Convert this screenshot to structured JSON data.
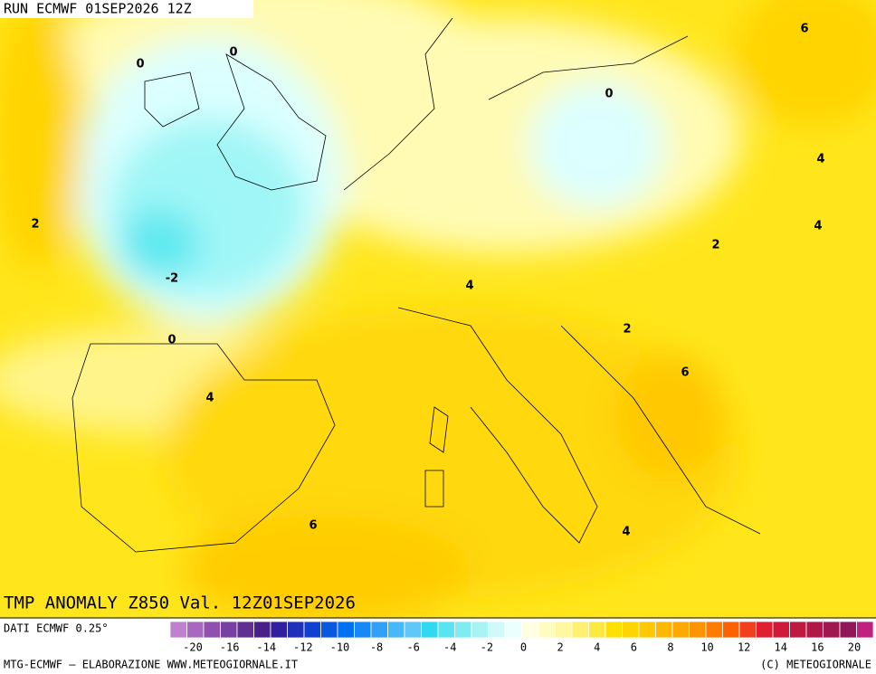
{
  "header": {
    "run": "RUN ECMWF 01SEP2026 12Z"
  },
  "map": {
    "title": "TMP ANOMALY Z850 Val. 12Z01SEP2026",
    "contour_labels": [
      0,
      0,
      0,
      6,
      4,
      2,
      4,
      2,
      -2,
      4,
      0,
      2,
      6,
      4,
      6,
      4
    ]
  },
  "legend": {
    "source": "DATI ECMWF 0.25°",
    "colors": [
      "#c080d0",
      "#a868c0",
      "#9050b0",
      "#7840a0",
      "#603090",
      "#482088",
      "#3020a0",
      "#2030b8",
      "#1040d0",
      "#0858e0",
      "#0070f0",
      "#1888f8",
      "#30a0f8",
      "#48b8f8",
      "#60c8f8",
      "#30d8f0",
      "#58e4f0",
      "#80ecf0",
      "#a8f4f4",
      "#d0fafa",
      "#ecffff",
      "#ffffe0",
      "#fffcc0",
      "#fff8a0",
      "#fff070",
      "#ffe840",
      "#ffe000",
      "#ffd400",
      "#ffc800",
      "#ffb800",
      "#ffa800",
      "#ff9400",
      "#ff7c00",
      "#ff6000",
      "#f04020",
      "#e02030",
      "#d01838",
      "#c01840",
      "#b01848",
      "#a01850",
      "#901858",
      "#c02080"
    ],
    "ticks": [
      -20,
      -16,
      -14,
      -12,
      -10,
      -8,
      -6,
      -4,
      -2,
      0,
      2,
      4,
      6,
      8,
      10,
      12,
      14,
      16,
      20
    ]
  },
  "footer": {
    "left": "MTG-ECMWF – ELABORAZIONE WWW.METEOGIORNALE.IT",
    "right": "(C) METEOGIORNALE"
  }
}
